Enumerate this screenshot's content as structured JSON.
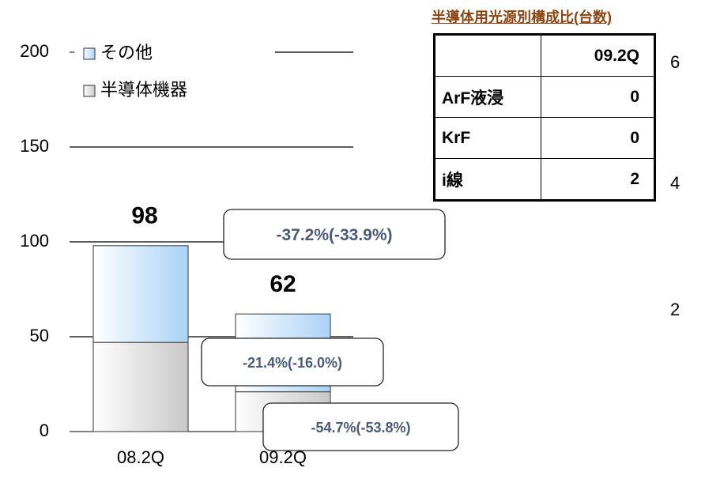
{
  "chart_data": {
    "type": "stacked-bar",
    "categories": [
      "08.2Q",
      "09.2Q"
    ],
    "series": [
      {
        "name": "半導体機器",
        "color": "#c8c8c8",
        "values": [
          47,
          21
        ]
      },
      {
        "name": "その他",
        "color": "#a9d2f7",
        "values": [
          51,
          41
        ]
      }
    ],
    "totals": [
      98,
      62
    ],
    "ylim": [
      0,
      200
    ],
    "yticks": [
      0,
      50,
      100,
      150,
      200
    ],
    "grid": true,
    "annotations": [
      "-37.2%(-33.9%)",
      "-21.4%(-16.0%)",
      "-54.7%(-53.8%)"
    ],
    "partial_axis_labels": [
      "6",
      "4",
      "2"
    ]
  },
  "table": {
    "title": "半導体用光源別構成比(台数)",
    "header": [
      "09.2Q"
    ],
    "rows": [
      [
        "ArF液浸",
        0
      ],
      [
        "KrF",
        0
      ],
      [
        "i線",
        2
      ]
    ]
  }
}
